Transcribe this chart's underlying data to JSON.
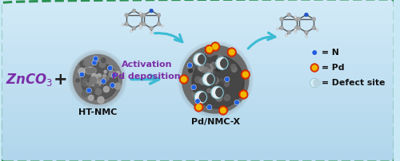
{
  "background_color_top": "#d6eef8",
  "background_color_bot": "#b8dff0",
  "border_color": "#2a9050",
  "znco3_color": "#7b2fa8",
  "plus_color": "#222222",
  "arrow_text1": "Activation",
  "arrow_text2": "Pd deposition",
  "arrow_text_color": "#7b2fa8",
  "arrow_color": "#3bbcd4",
  "label_ht_nmc": "HT-NMC",
  "label_pd_nmc": "Pd/NMC-X",
  "label_color": "#111111",
  "n_dot_color": "#2060e0",
  "pd_inner_color": "#f0b800",
  "pd_outer_color": "#dd3300",
  "mol_arrow_color": "#3bbcd4",
  "legend_text_color": "#111111"
}
